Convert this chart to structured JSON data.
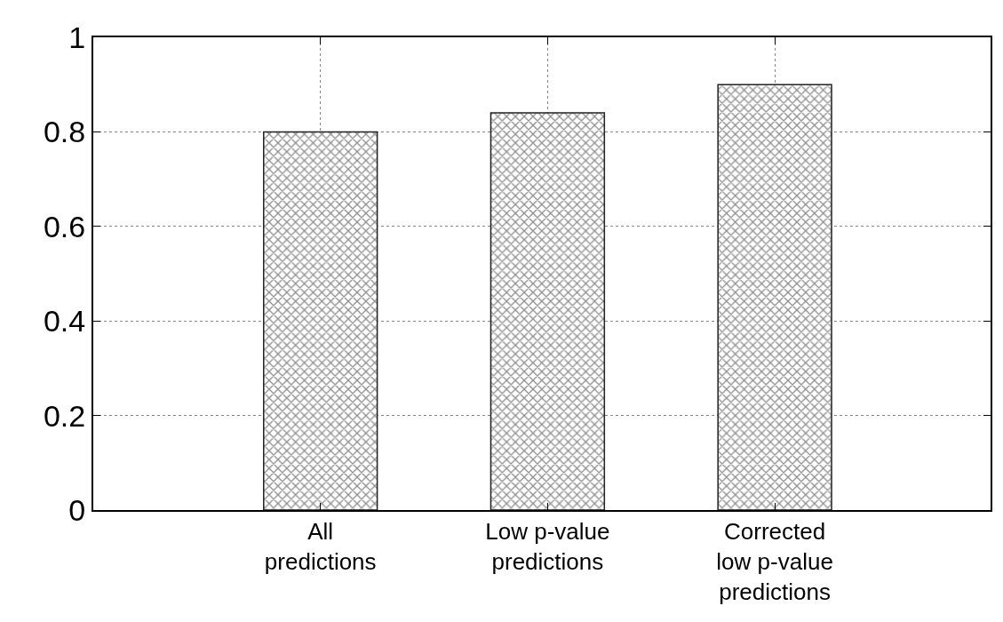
{
  "chart_data": {
    "type": "bar",
    "categories": [
      "All\npredictions",
      "Low p-value\npredictions",
      "Corrected\nlow p-value\npredictions"
    ],
    "values": [
      0.8,
      0.84,
      0.9
    ],
    "color": "#222222",
    "ylim": [
      0,
      1
    ],
    "yticks": [
      0,
      0.2,
      0.4,
      0.6,
      0.8,
      1
    ],
    "grid": true
  }
}
